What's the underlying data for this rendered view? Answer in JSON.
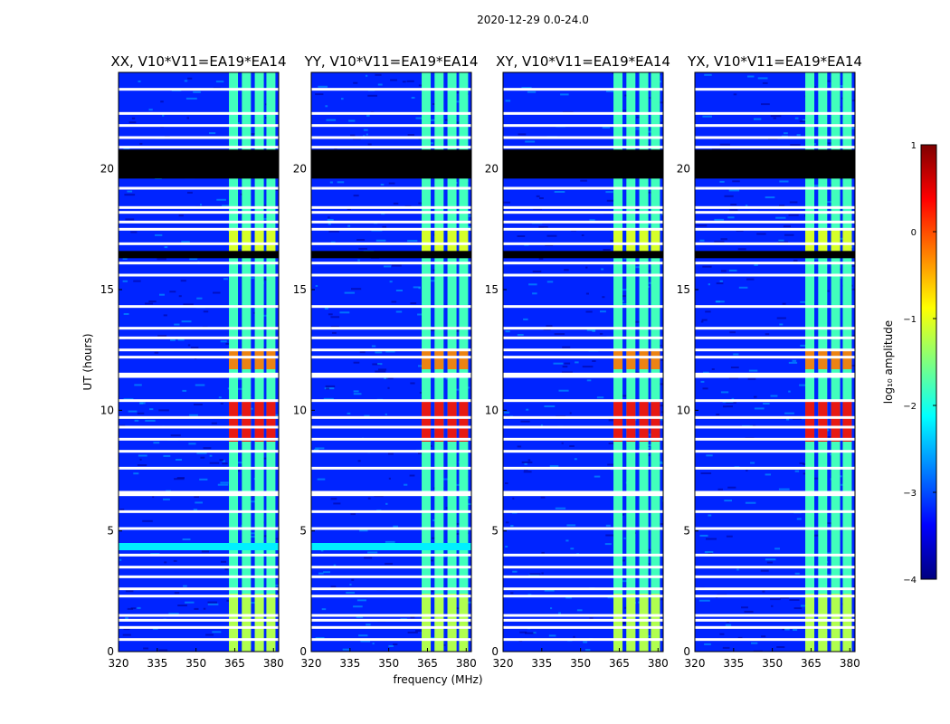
{
  "figure": {
    "suptitle": "2020-12-29 0.0-24.0",
    "xlabel": "frequency (MHz)",
    "ylabel": "UT (hours)"
  },
  "colorbar": {
    "label": "log₁₀ amplitude",
    "range": [
      -4,
      1
    ],
    "ticks": [
      1,
      0,
      -1,
      -2,
      -3,
      -4
    ],
    "tick_labels": [
      "1",
      "0",
      "−1",
      "−2",
      "−3",
      "−4"
    ],
    "colormap": "jet",
    "colors": [
      "#00007f",
      "#0000ff",
      "#007fff",
      "#00ffff",
      "#7fff7f",
      "#ffff00",
      "#ff7f00",
      "#ff0000",
      "#7f0000"
    ]
  },
  "chart_data": {
    "type": "heatmap",
    "x": {
      "min": 320,
      "max": 382,
      "ticks": [
        320,
        335,
        350,
        365,
        380
      ],
      "tick_labels": [
        "320",
        "335",
        "350",
        "365",
        "380"
      ]
    },
    "y": {
      "min": 0,
      "max": 24,
      "ticks": [
        0,
        5,
        10,
        15,
        20
      ],
      "tick_labels": [
        "0",
        "5",
        "10",
        "15",
        "20"
      ]
    },
    "value_units": "log10 amplitude",
    "panels": [
      {
        "title": "XX, V10*V11=EA19*EA14",
        "cyan_band_hours": [
          4.2,
          4.5
        ]
      },
      {
        "title": "YY, V10*V11=EA19*EA14",
        "cyan_band_hours": [
          4.2,
          4.5
        ]
      },
      {
        "title": "XY, V10*V11=EA19*EA14"
      },
      {
        "title": "YX, V10*V11=EA19*EA14"
      }
    ],
    "signal_columns_mhz": [
      364.5,
      369.5,
      374.5,
      379
    ],
    "signal_column_width_mhz": 3.5,
    "blank_hours": [
      [
        19.6,
        20.8
      ],
      [
        16.3,
        16.6
      ]
    ],
    "flagged_hours": [
      23.3,
      22.3,
      21.8,
      21.3,
      20.9,
      19.2,
      18.4,
      18.2,
      17.8,
      17.5,
      16.9,
      16.1,
      15.6,
      14.3,
      13.4,
      13.0,
      12.5,
      12.2,
      11.5,
      11.4,
      10.4,
      9.7,
      9.3,
      8.8,
      8.3,
      7.6,
      6.6,
      6.5,
      5.8,
      5.1,
      4.0,
      3.5,
      3.1,
      2.6,
      2.3,
      1.5,
      1.3,
      1.0,
      0.5
    ],
    "intensity_features": [
      {
        "hours": [
          11.7,
          12.5
        ],
        "level": -0.2
      },
      {
        "hours": [
          8.7,
          10.4
        ],
        "level": 0.4
      },
      {
        "hours": [
          0,
          2.4
        ],
        "level": -1.2
      },
      {
        "hours": [
          16.5,
          17.5
        ],
        "level": -1.0
      }
    ]
  }
}
